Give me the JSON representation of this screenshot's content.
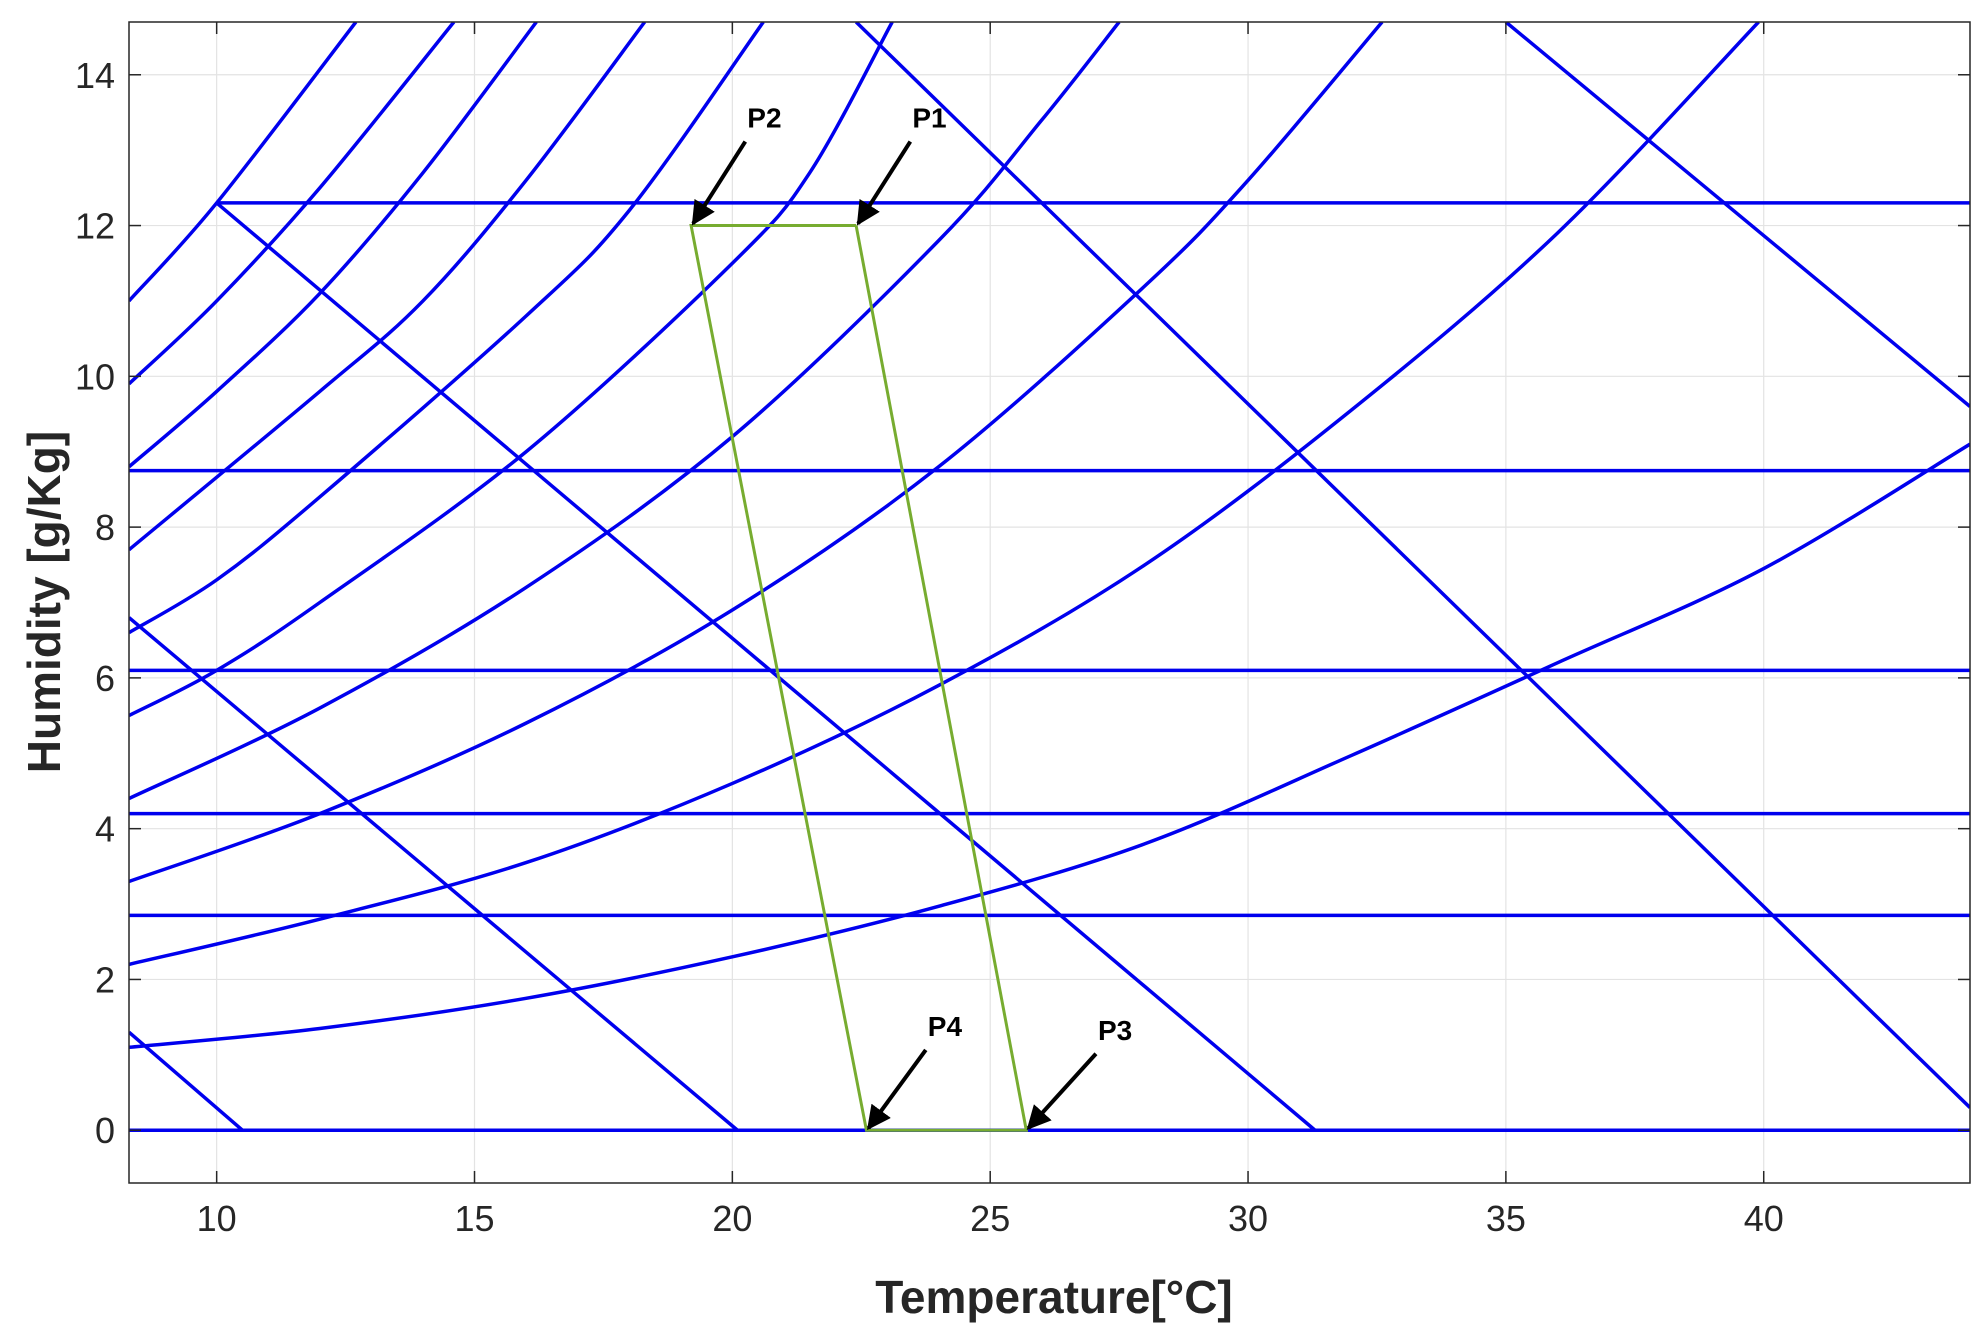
{
  "chart_data": {
    "type": "line",
    "title": "",
    "xlabel": "Temperature[°C]",
    "ylabel": "Humidity [g/Kg]",
    "xlim": [
      8.3,
      44.0
    ],
    "ylim": [
      -0.7,
      14.7
    ],
    "xticks": [
      10,
      15,
      20,
      25,
      30,
      35,
      40
    ],
    "yticks": [
      0,
      2,
      4,
      6,
      8,
      10,
      12,
      14
    ],
    "grid": true,
    "colors": {
      "chart_lines": "#0000ee",
      "cycle": "#77ac30",
      "arrows": "#000000",
      "grid": "#e3e3e3",
      "axes": "#262626"
    },
    "series": [
      {
        "group": "relative-humidity-curves",
        "points": [
          [
            8.3,
            1.1
          ],
          [
            12,
            1.35
          ],
          [
            16,
            1.75
          ],
          [
            20,
            2.3
          ],
          [
            24,
            2.97
          ],
          [
            28,
            3.8
          ],
          [
            32,
            4.97
          ],
          [
            36,
            6.2
          ],
          [
            40,
            7.45
          ],
          [
            44,
            9.1
          ]
        ]
      },
      {
        "group": "relative-humidity-curves",
        "points": [
          [
            8.3,
            2.2
          ],
          [
            12,
            2.8
          ],
          [
            16,
            3.55
          ],
          [
            20,
            4.6
          ],
          [
            24,
            5.9
          ],
          [
            28,
            7.5
          ],
          [
            32,
            9.55
          ],
          [
            36,
            11.9
          ],
          [
            39.9,
            14.7
          ]
        ]
      },
      {
        "group": "relative-humidity-curves",
        "points": [
          [
            8.3,
            3.3
          ],
          [
            12,
            4.2
          ],
          [
            16,
            5.4
          ],
          [
            20,
            6.9
          ],
          [
            24,
            8.8
          ],
          [
            28,
            11.2
          ],
          [
            30,
            12.6
          ],
          [
            32.6,
            14.7
          ]
        ]
      },
      {
        "group": "relative-humidity-curves",
        "points": [
          [
            8.3,
            4.4
          ],
          [
            12,
            5.6
          ],
          [
            16,
            7.2
          ],
          [
            20,
            9.2
          ],
          [
            24,
            11.8
          ],
          [
            26,
            13.4
          ],
          [
            27.5,
            14.7
          ]
        ]
      },
      {
        "group": "relative-humidity-curves",
        "points": [
          [
            8.3,
            5.5
          ],
          [
            10,
            6.1
          ],
          [
            12,
            7.0
          ],
          [
            16,
            9.0
          ],
          [
            20,
            11.5
          ],
          [
            21.5,
            12.7
          ],
          [
            23.1,
            14.7
          ]
        ]
      },
      {
        "group": "relative-humidity-curves",
        "points": [
          [
            8.3,
            6.6
          ],
          [
            10,
            7.3
          ],
          [
            12,
            8.4
          ],
          [
            16,
            10.8
          ],
          [
            18,
            12.2
          ],
          [
            20.6,
            14.7
          ]
        ]
      },
      {
        "group": "relative-humidity-curves",
        "points": [
          [
            8.3,
            7.7
          ],
          [
            12,
            9.8
          ],
          [
            14,
            11.0
          ],
          [
            16,
            12.6
          ],
          [
            18.3,
            14.7
          ]
        ]
      },
      {
        "group": "relative-humidity-curves",
        "points": [
          [
            8.3,
            8.8
          ],
          [
            10,
            9.8
          ],
          [
            12,
            11.1
          ],
          [
            14,
            12.7
          ],
          [
            16.2,
            14.7
          ]
        ]
      },
      {
        "group": "relative-humidity-curves",
        "points": [
          [
            8.3,
            9.9
          ],
          [
            10,
            11.0
          ],
          [
            12,
            12.5
          ],
          [
            14.6,
            14.7
          ]
        ]
      },
      {
        "group": "relative-humidity-curves",
        "points": [
          [
            8.3,
            11.0
          ],
          [
            10,
            12.3
          ],
          [
            12.7,
            14.7
          ]
        ]
      },
      {
        "group": "enthalpy-lines",
        "points": [
          [
            8.3,
            1.3
          ],
          [
            10.5,
            0.0
          ]
        ]
      },
      {
        "group": "enthalpy-lines",
        "points": [
          [
            8.3,
            6.8
          ],
          [
            20.1,
            0.0
          ]
        ]
      },
      {
        "group": "enthalpy-lines",
        "points": [
          [
            10.0,
            12.3
          ],
          [
            31.3,
            0.0
          ]
        ]
      },
      {
        "group": "enthalpy-lines",
        "points": [
          [
            22.4,
            14.7
          ],
          [
            44.0,
            0.3
          ]
        ]
      },
      {
        "group": "enthalpy-lines",
        "points": [
          [
            35.0,
            14.7
          ],
          [
            44.0,
            9.6
          ]
        ]
      },
      {
        "group": "constant-humidity-lines",
        "points": [
          [
            8.3,
            0.0
          ],
          [
            44.0,
            0.0
          ]
        ]
      },
      {
        "group": "constant-humidity-lines",
        "points": [
          [
            8.3,
            2.85
          ],
          [
            44.0,
            2.85
          ]
        ]
      },
      {
        "group": "constant-humidity-lines",
        "points": [
          [
            8.3,
            4.2
          ],
          [
            44.0,
            4.2
          ]
        ]
      },
      {
        "group": "constant-humidity-lines",
        "points": [
          [
            8.3,
            6.1
          ],
          [
            44.0,
            6.1
          ]
        ]
      },
      {
        "group": "constant-humidity-lines",
        "points": [
          [
            8.3,
            8.75
          ],
          [
            44.0,
            8.75
          ]
        ]
      },
      {
        "group": "constant-humidity-lines",
        "points": [
          [
            10.0,
            12.3
          ],
          [
            44.0,
            12.3
          ]
        ]
      }
    ],
    "cycle": {
      "points": [
        [
          22.4,
          12.0
        ],
        [
          19.2,
          12.0
        ],
        [
          22.6,
          0.0
        ],
        [
          25.7,
          0.0
        ],
        [
          22.4,
          12.0
        ]
      ]
    },
    "annotations": [
      {
        "label": "P1",
        "point": [
          22.4,
          12.0
        ],
        "text_at": [
          23.8,
          13.3
        ]
      },
      {
        "label": "P2",
        "point": [
          19.2,
          12.0
        ],
        "text_at": [
          20.6,
          13.3
        ]
      },
      {
        "label": "P3",
        "point": [
          25.7,
          0.0
        ],
        "text_at": [
          27.4,
          1.2
        ]
      },
      {
        "label": "P4",
        "point": [
          22.6,
          0.0
        ],
        "text_at": [
          24.1,
          1.25
        ]
      }
    ]
  }
}
